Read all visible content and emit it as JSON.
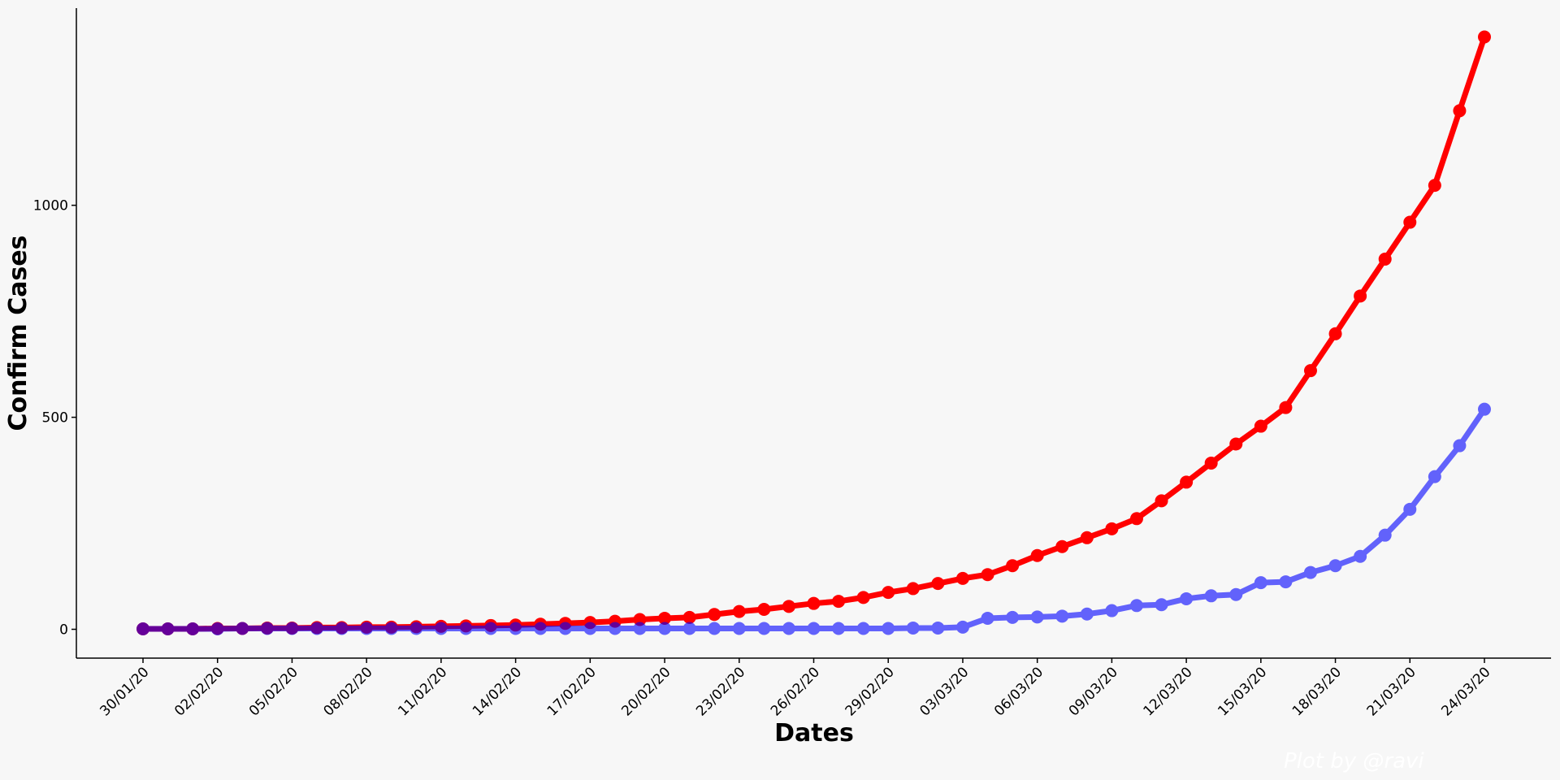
{
  "chart_data": {
    "type": "line",
    "xlabel": "Dates",
    "ylabel": "Confirm Cases",
    "watermark": "Plot by @ravi",
    "categories": [
      "30/01/20",
      null,
      null,
      "02/02/20",
      null,
      null,
      "05/02/20",
      null,
      null,
      "08/02/20",
      null,
      null,
      "11/02/20",
      null,
      null,
      "14/02/20",
      null,
      null,
      "17/02/20",
      null,
      null,
      "20/02/20",
      null,
      null,
      "23/02/20",
      null,
      null,
      "26/02/20",
      null,
      null,
      "29/02/20",
      null,
      null,
      "03/03/20",
      null,
      null,
      "06/03/20",
      null,
      null,
      "09/03/20",
      null,
      null,
      "12/03/20",
      null,
      null,
      "15/03/20",
      null,
      null,
      "18/03/20",
      null,
      null,
      "21/03/20",
      null,
      null,
      "24/03/20"
    ],
    "series": [
      {
        "color": "#ff0000",
        "values": [
          1,
          1,
          1,
          2,
          2,
          3,
          3,
          4,
          4,
          5,
          5,
          6,
          7,
          8,
          9,
          10,
          12,
          14,
          16,
          19,
          23,
          26,
          28,
          35,
          42,
          47,
          54,
          61,
          66,
          75,
          87,
          96,
          108,
          120,
          129,
          150,
          174,
          195,
          216,
          237,
          261,
          303,
          347,
          392,
          437,
          479,
          523,
          610,
          697,
          786,
          873,
          960,
          1047,
          1223,
          1397
        ]
      },
      {
        "color": "#0000ff",
        "values": [
          1,
          1,
          1,
          1,
          2,
          2,
          2,
          2,
          2,
          2,
          2,
          2,
          2,
          2,
          2,
          2,
          2,
          2,
          2,
          2,
          2,
          2,
          2,
          2,
          2,
          2,
          2,
          2,
          2,
          2,
          2,
          3,
          3,
          5,
          26,
          28,
          29,
          31,
          36,
          44,
          56,
          58,
          72,
          79,
          82,
          110,
          112,
          134,
          150,
          172,
          222,
          283,
          360,
          433,
          519
        ]
      }
    ],
    "ylim": [
      -68,
      1465
    ],
    "yticks": [
      0,
      500,
      1000
    ]
  }
}
